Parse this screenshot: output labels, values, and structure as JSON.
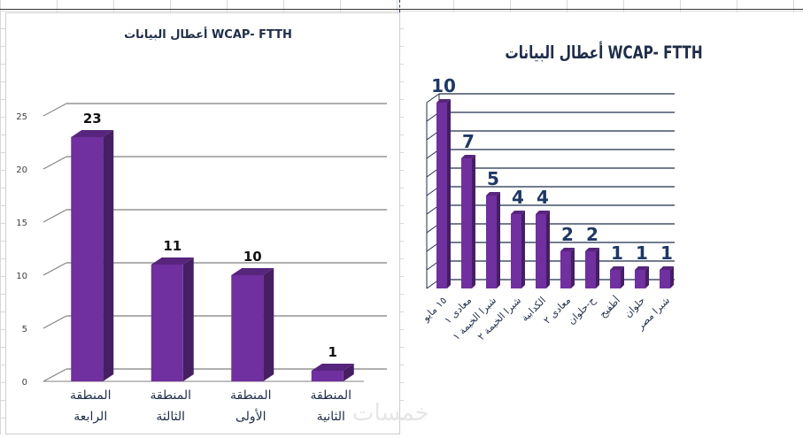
{
  "watermark": "خمسات",
  "chart_data": [
    {
      "type": "bar",
      "title": "أعطال البيانات WCAP-  FTTH",
      "categories": [
        "المنطقة الرابعة",
        "المنطقة الثالثة",
        "المنطقة الأولى",
        "المنطقة الثانية"
      ],
      "values": [
        23,
        11,
        10,
        1
      ],
      "ylim": [
        0,
        25
      ],
      "yticks": [
        0,
        5,
        10,
        15,
        20,
        25
      ],
      "grid": true,
      "color": "#7030a0"
    },
    {
      "type": "bar",
      "title": "أعطال البيانات WCAP-  FTTH",
      "categories": [
        "١٥ مايو",
        "معادى ١",
        "شبرا الخيمة ١",
        "شبرا الخيمة ٢",
        "الكدابية",
        "معادى ٢",
        "ح-حلوان",
        "أطفيح",
        "حلوان",
        "شبرا مصر"
      ],
      "values": [
        10,
        7,
        5,
        4,
        4,
        2,
        2,
        1,
        1,
        1
      ],
      "ylim": [
        0,
        10
      ],
      "grid": true,
      "color": "#7030a0"
    }
  ]
}
